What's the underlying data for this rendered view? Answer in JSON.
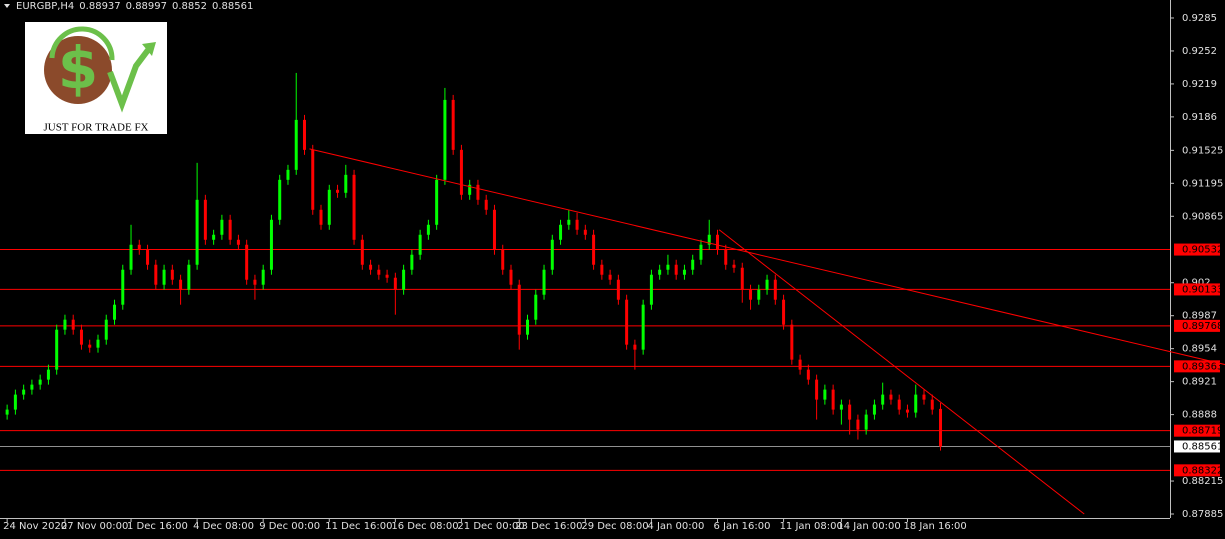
{
  "chart_data": {
    "type": "candlestick",
    "symbol": "EURGBP,H4",
    "logo_text": "JUST FOR TRADE FX",
    "categories": [
      "24 Nov 2020",
      null,
      null,
      null,
      null,
      null,
      null,
      "27 Nov 00:00",
      null,
      null,
      null,
      null,
      null,
      null,
      null,
      "1 Dec 16:00",
      null,
      null,
      null,
      null,
      null,
      null,
      null,
      "4 Dec 08:00",
      null,
      null,
      null,
      null,
      null,
      null,
      null,
      "9 Dec 00:00",
      null,
      null,
      null,
      null,
      null,
      null,
      null,
      "11 Dec 16:00",
      null,
      null,
      null,
      null,
      null,
      null,
      null,
      "16 Dec 08:00",
      null,
      null,
      null,
      null,
      null,
      null,
      null,
      "21 Dec 00:00",
      null,
      null,
      null,
      null,
      null,
      null,
      "23 Dec 16:00",
      null,
      null,
      null,
      null,
      null,
      null,
      null,
      "29 Dec 08:00",
      null,
      null,
      null,
      null,
      null,
      null,
      null,
      "4 Jan 00:00",
      null,
      null,
      null,
      null,
      null,
      null,
      null,
      "6 Jan 16:00",
      null,
      null,
      null,
      null,
      null,
      null,
      null,
      "11 Jan 08:00",
      null,
      null,
      null,
      null,
      null,
      null,
      "14 Jan 00:00",
      null,
      null,
      null,
      null,
      null,
      null,
      null,
      "18 Jan 16:00",
      null,
      null,
      null,
      null
    ],
    "open": [
      0.8888,
      0.8893,
      0.8908,
      0.8913,
      0.8918,
      0.8923,
      0.8933,
      0.8973,
      0.8983,
      0.8973,
      0.8958,
      0.8955,
      0.8963,
      0.8983,
      0.8998,
      0.9033,
      0.9058,
      0.9053,
      0.9038,
      0.9018,
      0.9033,
      0.9023,
      0.9013,
      0.9038,
      0.9103,
      0.9063,
      0.9068,
      0.9083,
      0.9063,
      0.9058,
      0.9023,
      0.9018,
      0.9033,
      0.9083,
      0.9123,
      0.9133,
      0.9183,
      0.9153,
      0.9093,
      0.9078,
      0.9113,
      0.911,
      0.9128,
      0.9063,
      0.9038,
      0.9033,
      0.9028,
      0.9025,
      0.9013,
      0.9033,
      0.9048,
      0.9068,
      0.9078,
      0.9123,
      0.9203,
      0.9153,
      0.9108,
      0.9118,
      0.9103,
      0.9093,
      0.9053,
      0.9033,
      0.9018,
      0.8968,
      0.8983,
      0.9008,
      0.9033,
      0.9063,
      0.9078,
      0.9083,
      0.9073,
      0.9068,
      0.9038,
      0.9028,
      0.9023,
      0.9003,
      0.8958,
      0.8953,
      0.8998,
      0.9028,
      0.9033,
      0.9038,
      0.9028,
      0.9033,
      0.9043,
      0.9058,
      0.9068,
      0.9053,
      0.9038,
      0.9035,
      0.9013,
      0.9003,
      0.9013,
      0.9023,
      0.9003,
      0.8978,
      0.8943,
      0.8933,
      0.8923,
      0.8903,
      0.8913,
      0.8893,
      0.8898,
      0.8883,
      0.8873,
      0.8888,
      0.8898,
      0.8908,
      0.8903,
      0.8893,
      0.889,
      0.8908,
      0.8903,
      0.88937
    ],
    "high": [
      0.8898,
      0.8913,
      0.8918,
      0.8923,
      0.8928,
      0.8938,
      0.8978,
      0.8988,
      0.8988,
      0.8978,
      0.8963,
      0.8968,
      0.8988,
      0.9003,
      0.9038,
      0.9078,
      0.9063,
      0.9058,
      0.9043,
      0.9038,
      0.9038,
      0.9028,
      0.9043,
      0.914,
      0.9108,
      0.9073,
      0.9088,
      0.9088,
      0.9068,
      0.9063,
      0.9028,
      0.9038,
      0.9088,
      0.9128,
      0.9138,
      0.923,
      0.9188,
      0.9158,
      0.9098,
      0.9118,
      0.9118,
      0.9138,
      0.9133,
      0.9068,
      0.9043,
      0.9038,
      0.9033,
      0.903,
      0.9038,
      0.9053,
      0.9073,
      0.9083,
      0.9128,
      0.9215,
      0.9208,
      0.9158,
      0.9123,
      0.9123,
      0.9108,
      0.9098,
      0.9058,
      0.9038,
      0.9023,
      0.8988,
      0.9013,
      0.9038,
      0.9068,
      0.9083,
      0.9093,
      0.909,
      0.9078,
      0.9073,
      0.9043,
      0.9033,
      0.9028,
      0.9008,
      0.8963,
      0.9003,
      0.9033,
      0.9038,
      0.9048,
      0.9043,
      0.9038,
      0.9048,
      0.9063,
      0.9083,
      0.9073,
      0.9058,
      0.9043,
      0.904,
      0.9018,
      0.9018,
      0.9028,
      0.9028,
      0.9008,
      0.8983,
      0.8948,
      0.8938,
      0.8928,
      0.8918,
      0.8918,
      0.8903,
      0.8903,
      0.8888,
      0.8893,
      0.8903,
      0.892,
      0.8913,
      0.8908,
      0.8898,
      0.8918,
      0.8913,
      0.8908,
      0.88997
    ],
    "low": [
      0.8883,
      0.8888,
      0.8903,
      0.8908,
      0.8913,
      0.8918,
      0.8928,
      0.8968,
      0.8968,
      0.8953,
      0.895,
      0.895,
      0.8958,
      0.8978,
      0.8993,
      0.9028,
      0.9048,
      0.9033,
      0.9013,
      0.9013,
      0.9018,
      0.8998,
      0.9008,
      0.9033,
      0.9058,
      0.9058,
      0.9063,
      0.9058,
      0.9053,
      0.9018,
      0.9003,
      0.9013,
      0.9028,
      0.9078,
      0.9118,
      0.9128,
      0.9148,
      0.9088,
      0.9073,
      0.9073,
      0.9105,
      0.9105,
      0.9058,
      0.9033,
      0.9028,
      0.9023,
      0.902,
      0.8988,
      0.9008,
      0.9028,
      0.9043,
      0.9063,
      0.9073,
      0.9118,
      0.9148,
      0.9103,
      0.9103,
      0.9098,
      0.9088,
      0.9048,
      0.9028,
      0.9013,
      0.8953,
      0.8963,
      0.8978,
      0.9003,
      0.9028,
      0.9058,
      0.9073,
      0.9068,
      0.9063,
      0.9033,
      0.9023,
      0.9018,
      0.8998,
      0.8953,
      0.8933,
      0.8948,
      0.8993,
      0.9023,
      0.9028,
      0.9023,
      0.9023,
      0.9028,
      0.9038,
      0.9053,
      0.9048,
      0.9033,
      0.903,
      0.9,
      0.8993,
      0.8998,
      0.9008,
      0.8998,
      0.8973,
      0.8938,
      0.8928,
      0.8918,
      0.8883,
      0.8898,
      0.8888,
      0.8878,
      0.8868,
      0.8863,
      0.8868,
      0.8883,
      0.8893,
      0.8898,
      0.8888,
      0.8885,
      0.8885,
      0.8898,
      0.8888,
      0.8852
    ],
    "close": [
      0.8893,
      0.8908,
      0.8913,
      0.8918,
      0.8923,
      0.8933,
      0.8973,
      0.8983,
      0.8973,
      0.8958,
      0.8955,
      0.8963,
      0.8983,
      0.8998,
      0.9033,
      0.9058,
      0.9053,
      0.9038,
      0.9018,
      0.9033,
      0.9023,
      0.9013,
      0.9038,
      0.9103,
      0.9063,
      0.9068,
      0.9083,
      0.9063,
      0.9058,
      0.9023,
      0.9018,
      0.9033,
      0.9083,
      0.9123,
      0.9133,
      0.9183,
      0.9153,
      0.9093,
      0.9078,
      0.9113,
      0.911,
      0.9128,
      0.9063,
      0.9038,
      0.9033,
      0.9028,
      0.9025,
      0.9013,
      0.9033,
      0.9048,
      0.9068,
      0.9078,
      0.9123,
      0.9203,
      0.9153,
      0.9108,
      0.9118,
      0.9103,
      0.9093,
      0.9053,
      0.9033,
      0.9018,
      0.8968,
      0.8983,
      0.9008,
      0.9033,
      0.9063,
      0.9078,
      0.9083,
      0.9073,
      0.9068,
      0.9038,
      0.9028,
      0.9023,
      0.9003,
      0.8958,
      0.8953,
      0.8998,
      0.9028,
      0.9033,
      0.9038,
      0.9028,
      0.9033,
      0.9043,
      0.9058,
      0.9068,
      0.9053,
      0.9038,
      0.9035,
      0.9013,
      0.9003,
      0.9013,
      0.9023,
      0.9003,
      0.8978,
      0.8943,
      0.8933,
      0.8923,
      0.8903,
      0.8913,
      0.8893,
      0.8898,
      0.8883,
      0.8873,
      0.8888,
      0.8898,
      0.8908,
      0.8903,
      0.8893,
      0.889,
      0.8908,
      0.8903,
      0.8893,
      0.88561
    ],
    "up_color": "#00ff00",
    "down_color": "#ff0000",
    "ylim": [
      0.87845,
      0.9303
    ],
    "yticks": [
      0.9285,
      0.9252,
      0.9219,
      0.9186,
      0.91525,
      0.91195,
      0.90865,
      0.902,
      0.8987,
      0.8954,
      0.8921,
      0.8888,
      0.88215,
      0.87885
    ],
    "levels": [
      0.90532,
      0.90133,
      0.89768,
      0.89363,
      0.88719,
      0.88322
    ],
    "level_color": "#ff0000",
    "current_price": 0.88561,
    "trendlines": [
      {
        "x": [
          36.6,
          148
        ],
        "y": [
          0.9154,
          0.8937
        ]
      },
      {
        "x": [
          86.2,
          130.4
        ],
        "y": [
          0.9073,
          0.87885
        ]
      }
    ]
  }
}
